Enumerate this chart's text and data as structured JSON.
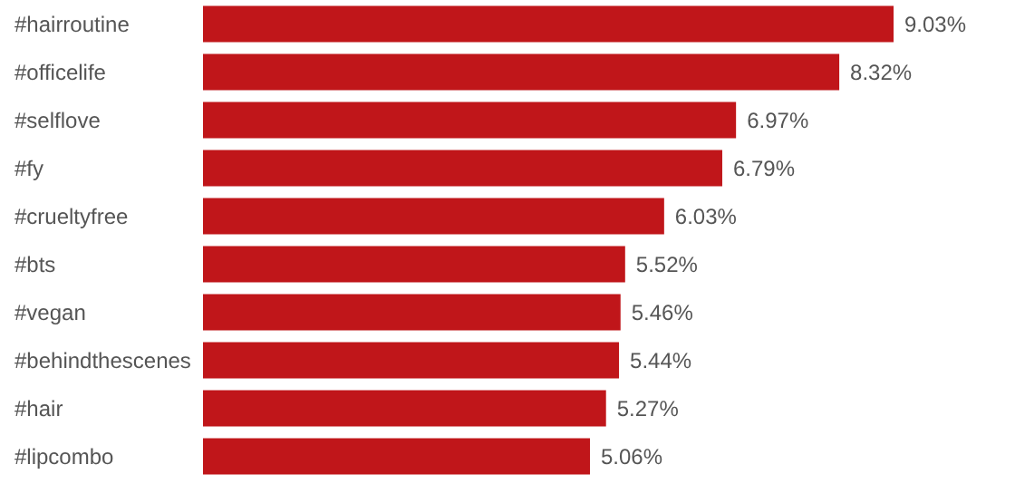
{
  "chart_data": {
    "type": "bar",
    "orientation": "horizontal",
    "categories": [
      "#hairroutine",
      "#officelife",
      "#selflove",
      "#fy",
      "#crueltyfree",
      "#bts",
      "#vegan",
      "#behindthescenes",
      "#hair",
      "#lipcombo"
    ],
    "values": [
      9.03,
      8.32,
      6.97,
      6.79,
      6.03,
      5.52,
      5.46,
      5.44,
      5.27,
      5.06
    ],
    "value_labels": [
      "9.03%",
      "8.32%",
      "6.97%",
      "6.79%",
      "6.03%",
      "5.52%",
      "5.46%",
      "5.44%",
      "5.27%",
      "5.06%"
    ],
    "color": "#c0161a"
  }
}
